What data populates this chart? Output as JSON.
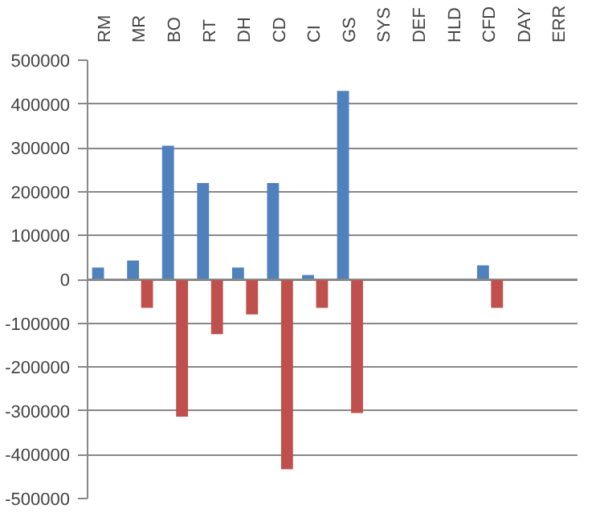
{
  "chart_data": {
    "type": "bar",
    "categories": [
      "RM",
      "MR",
      "BO",
      "RT",
      "DH",
      "CD",
      "CI",
      "GS",
      "SYS",
      "DEF",
      "HLD",
      "CFD",
      "DAY",
      "ERR"
    ],
    "series": [
      {
        "color": "#4f81bd",
        "values": [
          27000,
          43000,
          305000,
          220000,
          27000,
          220000,
          10000,
          430000,
          null,
          null,
          null,
          32000,
          null,
          null
        ]
      },
      {
        "color": "#c0504d",
        "values": [
          null,
          -65000,
          -313000,
          -125000,
          -80000,
          -433000,
          -65000,
          -305000,
          null,
          null,
          null,
          -65000,
          null,
          null
        ]
      }
    ],
    "ylim": [
      -500000,
      500000
    ],
    "yticks": [
      -500000,
      -400000,
      -300000,
      -200000,
      -100000,
      0,
      100000,
      200000,
      300000,
      400000,
      500000
    ],
    "grid": "y"
  }
}
